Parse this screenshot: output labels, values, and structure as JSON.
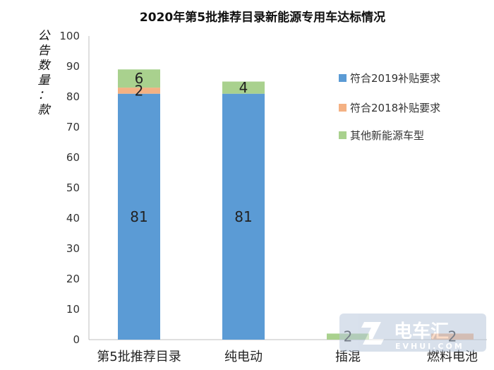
{
  "chart_data": {
    "type": "bar",
    "stacked": true,
    "title": "2020年第5批推荐目录新能源专用车达标情况",
    "ylabel": "公告数量：款",
    "xlabel": "",
    "ylim": [
      0,
      100
    ],
    "yticks": [
      0,
      10,
      20,
      30,
      40,
      50,
      60,
      70,
      80,
      90,
      100
    ],
    "grid": false,
    "legend_position": "right",
    "categories": [
      "第5批推荐目录",
      "纯电动",
      "插混",
      "燃料电池"
    ],
    "series": [
      {
        "name": "符合2019补贴要求",
        "color": "#5b9bd5",
        "values": [
          81,
          81,
          0,
          0
        ]
      },
      {
        "name": "符合2018补贴要求",
        "color": "#f4b183",
        "values": [
          2,
          0,
          0,
          2
        ]
      },
      {
        "name": "其他新能源车型",
        "color": "#a9d18e",
        "values": [
          6,
          4,
          2,
          0
        ]
      }
    ],
    "data_labels": [
      {
        "category": 0,
        "series": 0,
        "text": "81"
      },
      {
        "category": 0,
        "series": 1,
        "text": "2"
      },
      {
        "category": 0,
        "series": 2,
        "text": "6"
      },
      {
        "category": 1,
        "series": 0,
        "text": "81"
      },
      {
        "category": 1,
        "series": 2,
        "text": "4"
      },
      {
        "category": 2,
        "series": 2,
        "text": "2"
      },
      {
        "category": 3,
        "series": 1,
        "text": "2"
      }
    ]
  },
  "watermark": {
    "logo_text": "电车汇",
    "sub_text": "EVHUI.COM"
  }
}
